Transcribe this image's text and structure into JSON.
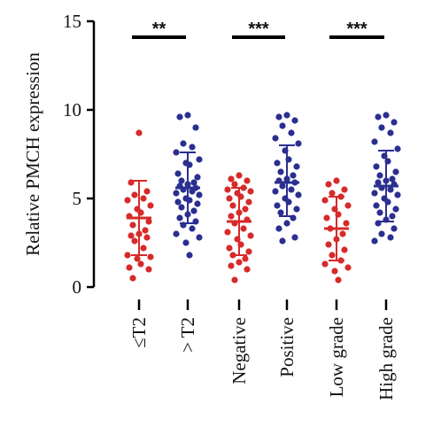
{
  "chart_data": {
    "type": "scatter",
    "xlabel": "",
    "ylabel": "Relative PMCH expression",
    "ylim": [
      0,
      15
    ],
    "yticks": [
      0,
      5,
      10,
      15
    ],
    "grid": false,
    "categories": [
      "≤T2",
      "> T2",
      "Negative",
      "Positive",
      "Low grade",
      "High grade"
    ],
    "colors": {
      "red": "#d72a2a",
      "blue": "#2b2f8f",
      "axis": "#000000"
    },
    "groups": [
      {
        "category": "≤T2",
        "color": "red",
        "mean": 3.9,
        "sd_upper": 6.0,
        "sd_lower": 1.8,
        "points": [
          8.7,
          5.9,
          5.4,
          5.2,
          5.0,
          4.9,
          4.6,
          4.4,
          4.2,
          4.0,
          3.7,
          3.5,
          3.2,
          3.0,
          2.9,
          2.8,
          2.6,
          2.2,
          1.8,
          1.7,
          1.6,
          1.3,
          1.1,
          1.0,
          0.5
        ]
      },
      {
        "category": "> T2",
        "color": "blue",
        "mean": 5.6,
        "sd_upper": 7.6,
        "sd_lower": 3.6,
        "points": [
          9.7,
          9.6,
          9.0,
          8.1,
          7.9,
          7.6,
          7.2,
          7.0,
          6.9,
          6.4,
          6.2,
          6.0,
          5.9,
          5.8,
          5.7,
          5.6,
          5.5,
          5.4,
          5.3,
          5.2,
          5.0,
          4.9,
          4.8,
          4.7,
          4.5,
          4.3,
          4.1,
          3.9,
          3.7,
          3.5,
          3.3,
          3.0,
          2.8,
          2.5,
          1.8
        ]
      },
      {
        "category": "Negative",
        "color": "red",
        "mean": 3.7,
        "sd_upper": 5.6,
        "sd_lower": 1.8,
        "points": [
          6.3,
          6.1,
          6.0,
          5.8,
          5.6,
          5.5,
          5.4,
          5.3,
          5.1,
          5.0,
          4.8,
          4.6,
          4.4,
          4.2,
          4.0,
          3.8,
          3.6,
          3.3,
          3.1,
          2.9,
          2.7,
          2.4,
          2.2,
          2.0,
          1.8,
          1.6,
          1.4,
          1.2,
          1.0,
          0.4
        ]
      },
      {
        "category": "Positive",
        "color": "blue",
        "mean": 5.9,
        "sd_upper": 8.0,
        "sd_lower": 4.0,
        "points": [
          9.7,
          9.6,
          9.4,
          9.1,
          8.7,
          8.4,
          8.1,
          7.7,
          7.2,
          7.0,
          6.8,
          6.5,
          6.3,
          6.1,
          6.0,
          5.9,
          5.7,
          5.5,
          5.4,
          5.2,
          5.0,
          4.8,
          4.6,
          4.4,
          4.2,
          3.9,
          3.6,
          3.3,
          2.8,
          2.6
        ]
      },
      {
        "category": "Low grade",
        "color": "red",
        "mean": 3.3,
        "sd_upper": 5.1,
        "sd_lower": 1.5,
        "points": [
          6.0,
          5.8,
          5.5,
          5.3,
          5.1,
          4.9,
          4.6,
          4.4,
          4.1,
          3.9,
          3.6,
          3.3,
          3.0,
          2.7,
          2.4,
          2.1,
          1.8,
          1.5,
          1.3,
          1.1,
          0.9,
          0.4
        ]
      },
      {
        "category": "High grade",
        "color": "blue",
        "mean": 5.7,
        "sd_upper": 7.7,
        "sd_lower": 3.7,
        "points": [
          9.7,
          9.6,
          9.3,
          9.0,
          8.7,
          8.2,
          7.8,
          7.4,
          7.1,
          6.8,
          6.5,
          6.3,
          6.1,
          6.0,
          5.9,
          5.8,
          5.6,
          5.5,
          5.3,
          5.2,
          5.0,
          4.8,
          4.6,
          4.4,
          4.2,
          4.0,
          3.8,
          3.6,
          3.3,
          3.0,
          2.8,
          2.6
        ]
      }
    ],
    "significance": [
      {
        "label": "**",
        "from": "≤T2",
        "to": "> T2",
        "y": 14.1
      },
      {
        "label": "***",
        "from": "Negative",
        "to": "Positive",
        "y": 14.1
      },
      {
        "label": "***",
        "from": "Low grade",
        "to": "High grade",
        "y": 14.1
      }
    ]
  }
}
